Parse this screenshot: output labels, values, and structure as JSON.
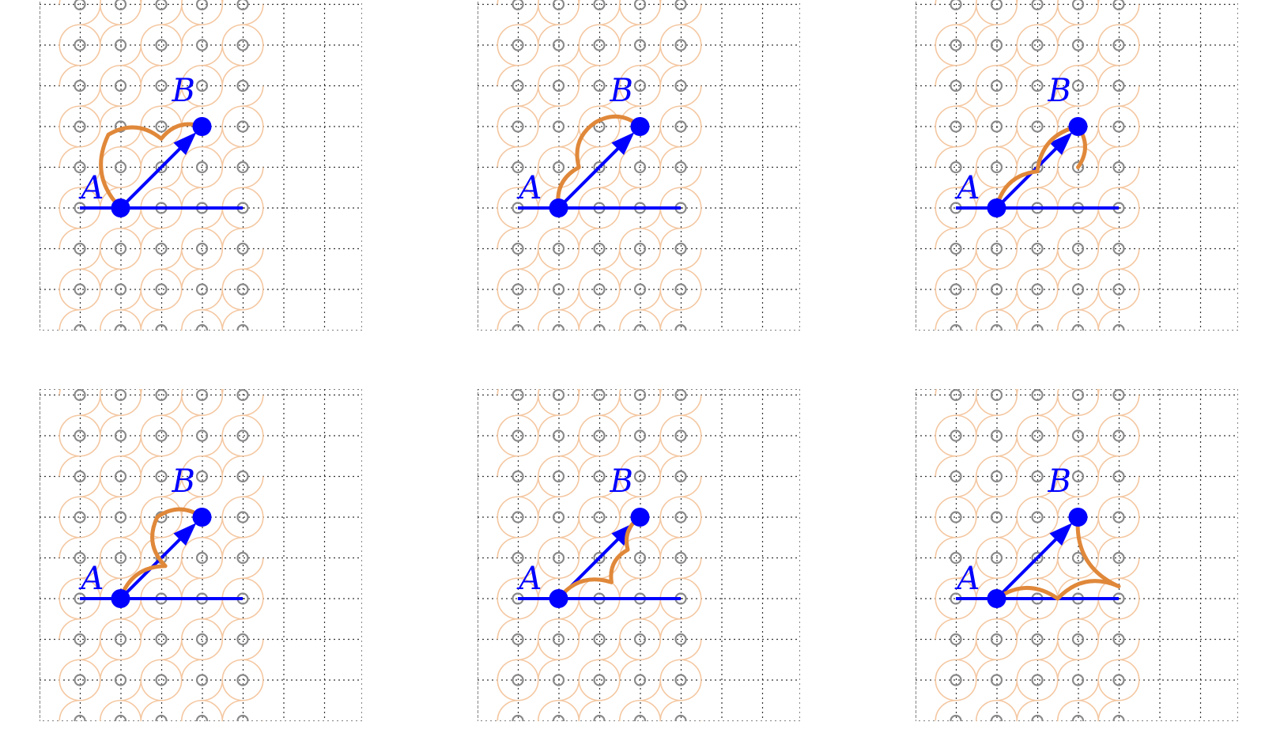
{
  "colors": {
    "grid": "#333333",
    "lattice_circle": "#8a8a8a",
    "faint_path": "#f4c7a1",
    "highlight_path": "#e0883a",
    "vector": "#0000ff"
  },
  "labels": {
    "start": "A",
    "end": "B"
  },
  "lattice": {
    "columns": [
      0,
      1,
      2,
      3,
      4
    ],
    "rows": [
      -3,
      -2,
      -1,
      0,
      1,
      2,
      3,
      4,
      5
    ]
  },
  "vector": {
    "start": [
      1,
      0
    ],
    "end": [
      3,
      2
    ],
    "baseline": [
      0,
      4
    ]
  },
  "panels": [
    {
      "id": "panel-1",
      "highlight": [
        [
          1,
          0
        ],
        [
          0.7,
          1.8
        ],
        [
          2.0,
          1.7
        ],
        [
          3,
          2
        ]
      ]
    },
    {
      "id": "panel-2",
      "highlight": [
        [
          1,
          0
        ],
        [
          1.5,
          1.0
        ],
        [
          1.9,
          2.1
        ],
        [
          3,
          2
        ]
      ]
    },
    {
      "id": "panel-3",
      "highlight": [
        [
          1,
          0
        ],
        [
          2.0,
          0.9
        ],
        [
          3,
          2
        ],
        [
          3,
          1
        ]
      ]
    },
    {
      "id": "panel-4",
      "highlight": [
        [
          1,
          0
        ],
        [
          2.1,
          0.8
        ],
        [
          1.9,
          2.0
        ],
        [
          3,
          2
        ]
      ]
    },
    {
      "id": "panel-5",
      "highlight": [
        [
          1,
          0
        ],
        [
          2.3,
          0.4
        ],
        [
          2.7,
          1.2
        ],
        [
          3,
          2
        ]
      ]
    },
    {
      "id": "panel-6",
      "highlight": [
        [
          1,
          0
        ],
        [
          2.5,
          0.0
        ],
        [
          4.0,
          0.3
        ],
        [
          3,
          2
        ]
      ]
    }
  ]
}
